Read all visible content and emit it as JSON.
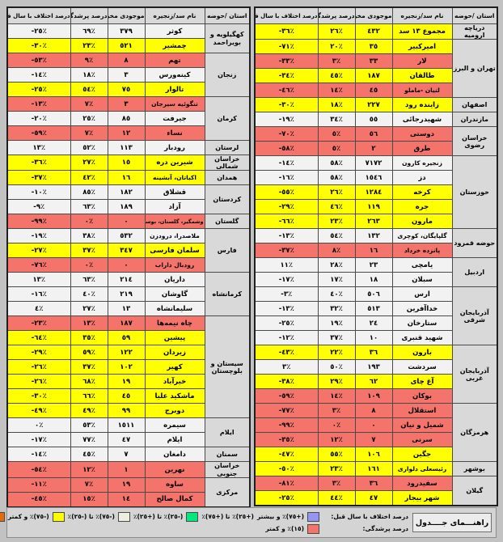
{
  "chart_data": {
    "type": "table",
    "columns": {
      "province": "استان /حوضه",
      "name": "نام سد/زنجیره",
      "volume": "موجودی مخزن",
      "fill": "درصد پرشدگی",
      "diff": "درصد اختلاف با سال قبل"
    },
    "row_fields": [
      "name",
      "volume",
      "fill",
      "diff",
      "color"
    ],
    "panels": {
      "right": {
        "groups": [
          {
            "province": "دریاچه ارومیه",
            "rows": [
              [
                "مجموع ١٣ سد",
                "٤٣٢",
                "٢٦٪",
                "-٣٦٪",
                "yellow"
              ]
            ]
          },
          {
            "province": "تهران و البرز",
            "rows": [
              [
                "امیرکبیر",
                "٣٥",
                "٢٠٪",
                "-٧١٪",
                "yellow"
              ],
              [
                "لار",
                "٣٣",
                "٣٪",
                "-٣٣٪",
                "red"
              ],
              [
                "طالقان",
                "١٨٧",
                "٤٥٪",
                "-٣٤٪",
                "yellow"
              ],
              [
                "لتیان -ماملو",
                "٤٥",
                "١٤٪",
                "-٤٦٪",
                "red"
              ]
            ]
          },
          {
            "province": "اصفهان",
            "rows": [
              [
                "زاینده رود",
                "٢٢٧",
                "١٨٪",
                "-٣٠٪",
                "yellow"
              ]
            ]
          },
          {
            "province": "مازندران",
            "rows": [
              [
                "شهیدرجائی",
                "٥٥",
                "٣٤٪",
                "-١٩٪",
                "white"
              ]
            ]
          },
          {
            "province": "خراسان رضوی",
            "rows": [
              [
                "دوستی",
                "٥٦",
                "٥٪",
                "-٧٠٪",
                "red"
              ],
              [
                "طرق",
                "٢",
                "٥٪",
                "-٥٨٪",
                "red"
              ]
            ]
          },
          {
            "province": "خوزستان",
            "rows": [
              [
                "زنجیره کارون",
                "٧١٧٢",
                "٥٨٪",
                "-١٤٪",
                "white"
              ],
              [
                "دز",
                "١٥٤٦",
                "٥٨٪",
                "-١٦٪",
                "white"
              ],
              [
                "کرخه",
                "١٢٨٤",
                "٢٦٪",
                "-٥٥٪",
                "yellow"
              ],
              [
                "جره",
                "١١٩",
                "٤٦٪",
                "-٢٩٪",
                "yellow"
              ],
              [
                "مارون",
                "٢٦٣",
                "٢٣٪",
                "-٦٦٪",
                "yellow"
              ]
            ]
          },
          {
            "province": "حوضه قمرود",
            "rows": [
              [
                "گلپایگان، کوچری",
                "١٣٢",
                "٥٤٪",
                "-١٣٪",
                "white"
              ],
              [
                "پانزده خرداد",
                "١٦",
                "٨٪",
                "-٣٧٪",
                "red"
              ]
            ]
          },
          {
            "province": "اردبیل",
            "rows": [
              [
                "یامچی",
                "٢٣",
                "٢٨٪",
                "١١٪",
                "white"
              ],
              [
                "سبلان",
                "١٨",
                "١٧٪",
                "-١٧٪",
                "white"
              ]
            ]
          },
          {
            "province": "آذربایجان شرقی",
            "rows": [
              [
                "ارس",
                "٥٠٦",
                "٤٠٪",
                "-٣٪",
                "white"
              ],
              [
                "خداآفرین",
                "٥١٣",
                "٣٢٪",
                "-١٣٪",
                "white"
              ],
              [
                "ستارخان",
                "٢٤",
                "١٩٪",
                "-٢٥٪",
                "white"
              ],
              [
                "شهید قنبری",
                "١٠",
                "٣٧٪",
                "-١٢٪",
                "white"
              ]
            ]
          },
          {
            "province": "آذربایجان غربی",
            "rows": [
              [
                "بارون",
                "٣٦",
                "٢٢٪",
                "-٤٣٪",
                "yellow"
              ],
              [
                "سردشت",
                "١٩٣",
                "٥٠٪",
                "٣٪",
                "white"
              ],
              [
                "آغ چای",
                "٦٢",
                "٢٩٪",
                "-٣٨٪",
                "yellow"
              ],
              [
                "بوکان",
                "١٠٩",
                "١٤٪",
                "-٥٩٪",
                "red"
              ]
            ]
          },
          {
            "province": "هرمزگان",
            "rows": [
              [
                "استقلال",
                "٨",
                "٣٪",
                "-٧٧٪",
                "red"
              ],
              [
                "شمیل و نیان",
                "٠",
                "٠٪",
                "-٩٩٪",
                "red"
              ],
              [
                "سرنی",
                "٧",
                "١٢٪",
                "-٣٥٪",
                "red"
              ],
              [
                "جگین",
                "١٠٦",
                "٥٥٪",
                "-٤٧٪",
                "yellow"
              ]
            ]
          },
          {
            "province": "بوشهر",
            "rows": [
              [
                "رئیسعلی دلواری",
                "١٦١",
                "٢٣٪",
                "-٥٠٪",
                "yellow"
              ]
            ]
          },
          {
            "province": "گیلان",
            "rows": [
              [
                "سفیدرود",
                "٣٦",
                "٣٪",
                "-٨١٪",
                "red"
              ],
              [
                "شهر بیجار",
                "٤٧",
                "٤٤٪",
                "-٢٥٪",
                "yellow"
              ]
            ]
          }
        ]
      },
      "left": {
        "groups": [
          {
            "province": "کهگیلویه و بویراحمد",
            "rows": [
              [
                "کوثر",
                "٣٧٩",
                "٦٩٪",
                "-٢٥٪",
                "white"
              ],
              [
                "چمشیر",
                "٥٢١",
                "٢٣٪",
                "-٣٠٪",
                "yellow"
              ]
            ]
          },
          {
            "province": "زنجان",
            "rows": [
              [
                "تهم",
                "٨",
                "٩٪",
                "-٥٣٪",
                "red"
              ],
              [
                "کینه‌ورس",
                "٣",
                "١٨٪",
                "-١٤٪",
                "white"
              ],
              [
                "تالوار",
                "٧٥",
                "٥٤٪",
                "-٢٥٪",
                "yellow"
              ]
            ]
          },
          {
            "province": "کرمان",
            "rows": [
              [
                "تنگوئیه سیرجان",
                "٣",
                "٧٪",
                "-١٣٪",
                "red"
              ],
              [
                "جیرفت",
                "٨٥",
                "٢٥٪",
                "-٢٠٪",
                "white"
              ],
              [
                "نساء",
                "١٢",
                "٧٪",
                "-٥٩٪",
                "red"
              ]
            ]
          },
          {
            "province": "لرستان",
            "rows": [
              [
                "رودبار",
                "١١٣",
                "٥٢٪",
                "١٣٪",
                "white"
              ]
            ]
          },
          {
            "province": "خراسان شمالی",
            "rows": [
              [
                "شیرین دره",
                "١٥",
                "٢٧٪",
                "-٣٦٪",
                "yellow"
              ]
            ]
          },
          {
            "province": "همدان",
            "rows": [
              [
                "اکباتان، آبشینه",
                "١٦",
                "٤٢٪",
                "-٣٧٪",
                "yellow"
              ]
            ]
          },
          {
            "province": "کردستان",
            "rows": [
              [
                "قشلاق",
                "١٨٢",
                "٨٥٪",
                "-١٠٪",
                "white"
              ],
              [
                "آزاد",
                "١٨٩",
                "٦٣٪",
                "-٩٪",
                "white"
              ]
            ]
          },
          {
            "province": "گلستان",
            "rows": [
              [
                "وشمگیر، گلستان، بوستان",
                "٠",
                "٠٪",
                "-٩٩٪",
                "red"
              ]
            ]
          },
          {
            "province": "فارس",
            "rows": [
              [
                "ملاصدرا، درودزن",
                "٥٣٢",
                "٣٨٪",
                "-١٩٪",
                "white"
              ],
              [
                "سلمان فارسی",
                "٣٤٧",
                "٣٧٪",
                "-٢٧٪",
                "yellow"
              ],
              [
                "رودبال داراب",
                "٠",
                "٠٪",
                "-٧٦٪",
                "red"
              ]
            ]
          },
          {
            "province": "کرمانشاه",
            "rows": [
              [
                "داریان",
                "٢١٤",
                "٦٣٪",
                "١٣٪",
                "white"
              ],
              [
                "گاوشان",
                "٢١٩",
                "٤٠٪",
                "-١٦٪",
                "white"
              ],
              [
                "سلیمانشاه",
                "١٣",
                "٢٧٪",
                "٤٪",
                "white"
              ]
            ]
          },
          {
            "province": "سیستان و بلوچستان",
            "rows": [
              [
                "چاه نیمه‌ها",
                "١٨٧",
                "١٣٪",
                "-٢٣٪",
                "red"
              ],
              [
                "پیشین",
                "٥٩",
                "٣٥٪",
                "-٦٤٪",
                "yellow"
              ],
              [
                "زیردان",
                "١٢٢",
                "٥٩٪",
                "-٢٩٪",
                "yellow"
              ],
              [
                "کهیر",
                "١٠٢",
                "٣٧٪",
                "-٢٦٪",
                "yellow"
              ],
              [
                "خیرآباد",
                "١٩",
                "٦٨٪",
                "-٢٦٪",
                "yellow"
              ],
              [
                "ماشکید علیا",
                "٤٥",
                "٦٦٪",
                "-٣٠٪",
                "yellow"
              ],
              [
                "دوبرج",
                "٩٩",
                "٤٩٪",
                "-٤٩٪",
                "yellow"
              ]
            ]
          },
          {
            "province": "ایلام",
            "rows": [
              [
                "سیمره",
                "١٥١١",
                "٥٣٪",
                "٠٪",
                "white"
              ],
              [
                "ایلام",
                "٤٧",
                "٧٧٪",
                "-١٧٪",
                "white"
              ]
            ]
          },
          {
            "province": "سمنان",
            "rows": [
              [
                "دامغان",
                "٧",
                "٤٥٪",
                "-١٤٪",
                "white"
              ]
            ]
          },
          {
            "province": "خراسان جنوبی",
            "rows": [
              [
                "نهرین",
                "١",
                "١٢٪",
                "-٥٤٪",
                "red"
              ]
            ]
          },
          {
            "province": "مرکزی",
            "rows": [
              [
                "ساوه",
                "١٩",
                "٧٪",
                "-١١٪",
                "red"
              ],
              [
                "کمال صالح",
                "١٤",
                "١٥٪",
                "-٤٥٪",
                "red"
              ]
            ]
          }
        ]
      }
    },
    "legend": {
      "title": "راهنـــمای جــــدول",
      "diff_label": "درصد اختلاف با سال قبل:",
      "fill_label": "درصد پرشدگی:",
      "items_diff": [
        {
          "label": "(+٧٥)٪ و بیشتر",
          "color": "#9595F3"
        },
        {
          "label": "(+٢٥)٪ تا (+٧٥)٪",
          "color": "#00E87E"
        },
        {
          "label": "(-٢٥)٪ تا (+٢٥)٪",
          "color": "#EDEDE0"
        },
        {
          "label": "(-٧٥)٪ تا (-٢٥)٪",
          "color": "#FFFF00"
        },
        {
          "label": "(-٧٥)٪ و کمتر",
          "color": "#E36C09"
        }
      ],
      "item_fill": {
        "label": "(١٥)٪ و کمتر",
        "color": "#F4736B"
      }
    },
    "colors": {
      "row_white": "#F2F2F2",
      "row_yellow": "#FFFF00",
      "row_red": "#F4736B",
      "header_gray": "#D9D9D9",
      "frame_gray": "#C2C2C2"
    }
  }
}
